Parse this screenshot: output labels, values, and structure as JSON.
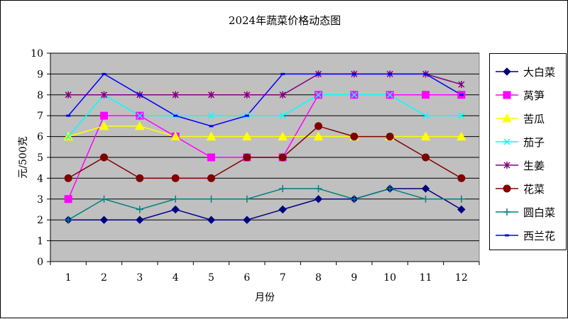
{
  "chart_data": {
    "type": "line",
    "title": "2024年蔬菜价格动态图",
    "xlabel": "月份",
    "ylabel": "元/500克",
    "categories": [
      "1",
      "2",
      "3",
      "4",
      "5",
      "6",
      "7",
      "8",
      "9",
      "10",
      "11",
      "12"
    ],
    "ylim": [
      0,
      10
    ],
    "yticks": [
      0,
      1,
      2,
      3,
      4,
      5,
      6,
      7,
      8,
      9,
      10
    ],
    "grid": true,
    "legend_position": "right",
    "plot_background": "#c0c0c0",
    "series": [
      {
        "name": "大白菜",
        "color": "#000080",
        "marker": "diamond",
        "values": [
          2,
          2,
          2,
          2.5,
          2,
          2,
          2.5,
          3,
          3,
          3.5,
          3.5,
          2.5
        ]
      },
      {
        "name": "莴笋",
        "color": "#ff00ff",
        "marker": "square",
        "values": [
          3,
          7,
          7,
          6,
          5,
          5,
          5,
          8,
          8,
          8,
          8,
          8
        ]
      },
      {
        "name": "苦瓜",
        "color": "#ffff00",
        "marker": "triangle",
        "values": [
          6,
          6.5,
          6.5,
          6,
          6,
          6,
          6,
          6,
          6,
          6,
          6,
          6
        ]
      },
      {
        "name": "茄子",
        "color": "#00ffff",
        "marker": "x",
        "values": [
          6,
          8,
          7,
          7,
          7,
          7,
          7,
          8,
          8,
          8,
          7,
          7
        ]
      },
      {
        "name": "生姜",
        "color": "#800080",
        "marker": "star",
        "values": [
          8,
          8,
          8,
          8,
          8,
          8,
          8,
          9,
          9,
          9,
          9,
          8.5
        ]
      },
      {
        "name": "花菜",
        "color": "#800000",
        "marker": "circle",
        "values": [
          4,
          5,
          4,
          4,
          4,
          5,
          5,
          6.5,
          6,
          6,
          5,
          4
        ]
      },
      {
        "name": "圆白菜",
        "color": "#008080",
        "marker": "plus",
        "values": [
          2,
          3,
          2.5,
          3,
          3,
          3,
          3.5,
          3.5,
          3,
          3.5,
          3,
          3
        ]
      },
      {
        "name": "西兰花",
        "color": "#0000ff",
        "marker": "dash",
        "values": [
          7,
          9,
          8,
          7,
          6.5,
          7,
          9,
          9,
          9,
          9,
          9,
          8
        ]
      }
    ]
  }
}
